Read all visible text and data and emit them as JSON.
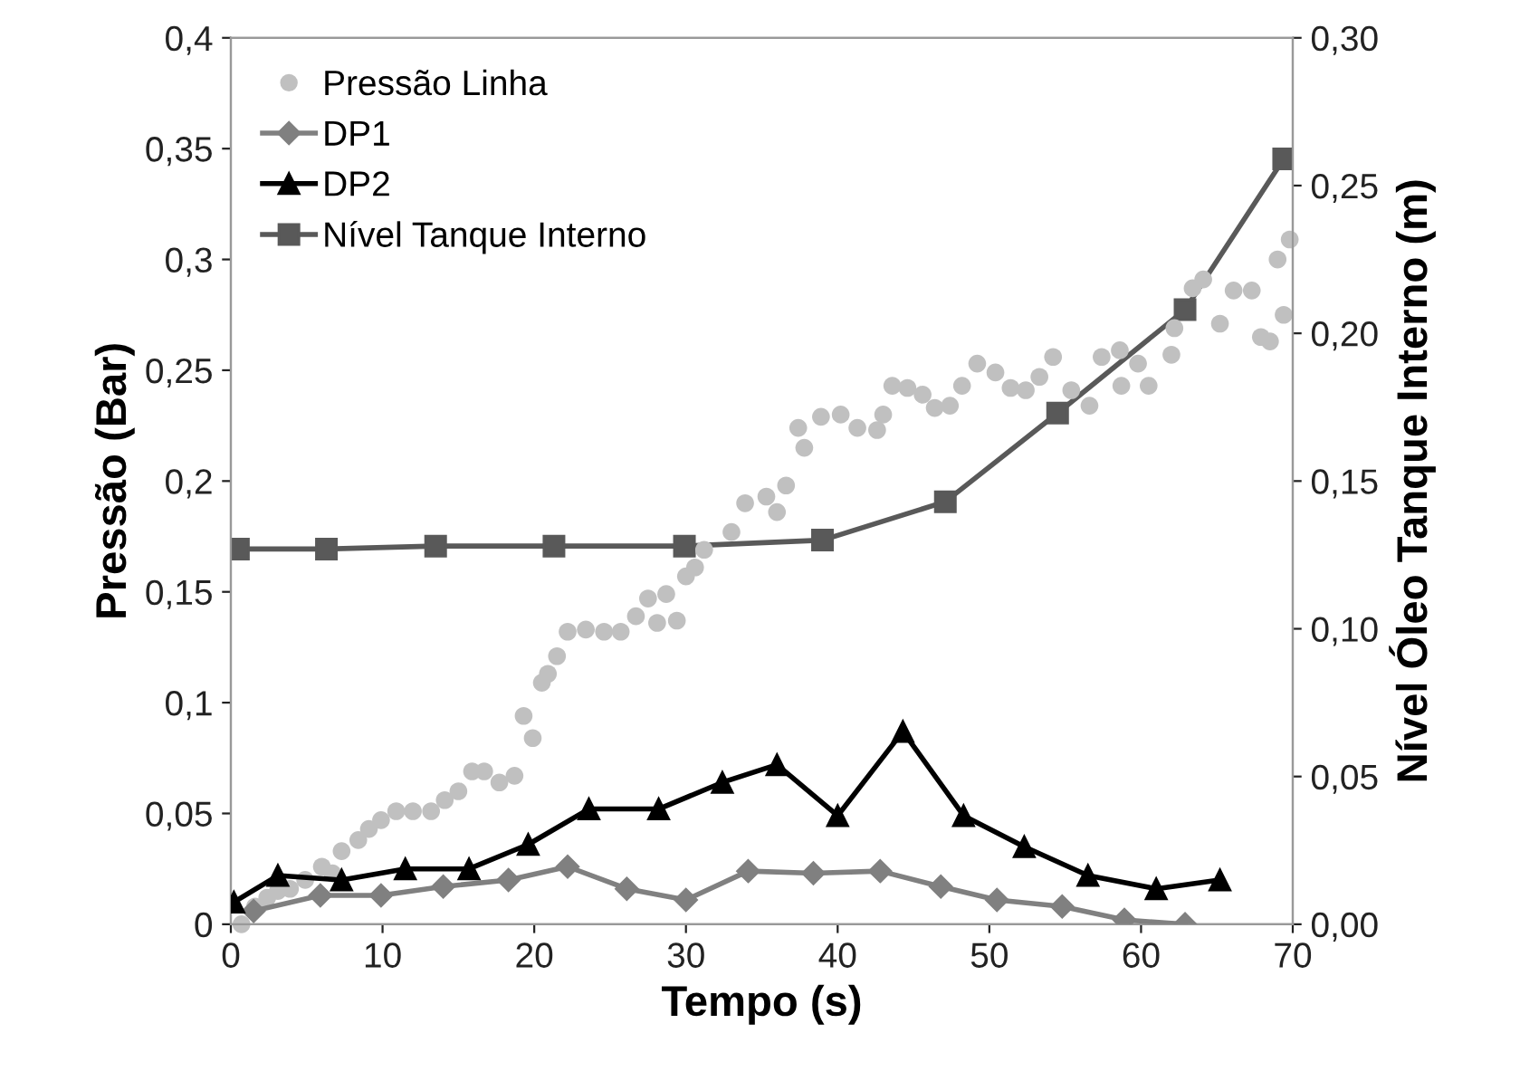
{
  "chart_data": {
    "type": "line",
    "xlabel": "Tempo (s)",
    "ylabel": "Pressão (Bar)",
    "y2label": "Nível Óleo Tanque Interno (m)",
    "xlim": [
      0,
      70
    ],
    "xticks": [
      0,
      10,
      20,
      30,
      40,
      50,
      60,
      70
    ],
    "ylim": [
      0,
      0.4
    ],
    "yticks": [
      0,
      {
        "value": 0.05,
        "label": "0,05"
      },
      {
        "value": 0.1,
        "label": "0,1"
      },
      {
        "value": 0.15,
        "label": "0,15"
      },
      {
        "value": 0.2,
        "label": "0,2"
      },
      {
        "value": 0.25,
        "label": "0,25"
      },
      {
        "value": 0.3,
        "label": "0,3"
      },
      {
        "value": 0.35,
        "label": "0,35"
      },
      {
        "value": 0.4,
        "label": "0,4"
      }
    ],
    "y2lim": [
      0,
      0.3
    ],
    "y2ticks": [
      {
        "value": 0,
        "label": "0,00"
      },
      {
        "value": 0.05,
        "label": "0,05"
      },
      {
        "value": 0.1,
        "label": "0,10"
      },
      {
        "value": 0.15,
        "label": "0,15"
      },
      {
        "value": 0.2,
        "label": "0,20"
      },
      {
        "value": 0.25,
        "label": "0,25"
      },
      {
        "value": 0.3,
        "label": "0,30"
      }
    ],
    "grid": false,
    "legend": "top left",
    "series": [
      {
        "name": "Pressão Linha",
        "type": "scatter",
        "marker": "circle",
        "color": "#c0c0c0",
        "x": [
          0.7,
          1.6,
          2.4,
          3.1,
          3.9,
          4.9,
          6,
          6.7,
          7.3,
          8.4,
          9.1,
          9.9,
          10.9,
          12,
          13.2,
          14.1,
          15,
          15.9,
          16.7,
          17.7,
          18.7,
          19.3,
          19.9,
          20.5,
          20.9,
          21.5,
          22.2,
          23.4,
          24.6,
          25.7,
          26.7,
          27.5,
          28.1,
          28.7,
          29.4,
          30,
          30.6,
          31.2,
          33,
          33.9,
          35.3,
          36,
          36.6,
          37.4,
          37.8,
          38.9,
          40.2,
          41.3,
          42.6,
          43,
          43.6,
          44.6,
          45.6,
          46.4,
          47.4,
          48.2,
          49.2,
          50.4,
          51.4,
          52.4,
          53.3,
          54.2,
          55.4,
          56.6,
          57.4,
          58.6,
          58.7,
          59.8,
          60.5,
          62,
          62.2,
          63.4,
          64.1,
          65.2,
          66.1,
          67.3,
          67.9,
          68.5,
          69,
          69.4,
          69.8
        ],
        "values": [
          0.0,
          0.008,
          0.012,
          0.015,
          0.016,
          0.02,
          0.026,
          0.023,
          0.033,
          0.038,
          0.043,
          0.047,
          0.051,
          0.051,
          0.051,
          0.056,
          0.06,
          0.069,
          0.069,
          0.064,
          0.067,
          0.094,
          0.084,
          0.109,
          0.113,
          0.121,
          0.132,
          0.133,
          0.132,
          0.132,
          0.139,
          0.147,
          0.136,
          0.149,
          0.137,
          0.157,
          0.161,
          0.169,
          0.177,
          0.19,
          0.193,
          0.186,
          0.198,
          0.224,
          0.215,
          0.229,
          0.23,
          0.224,
          0.223,
          0.23,
          0.243,
          0.242,
          0.239,
          0.233,
          0.234,
          0.243,
          0.253,
          0.249,
          0.242,
          0.241,
          0.247,
          0.256,
          0.241,
          0.234,
          0.256,
          0.259,
          0.243,
          0.253,
          0.243,
          0.257,
          0.269,
          0.287,
          0.291,
          0.271,
          0.286,
          0.286,
          0.265,
          0.263,
          0.3,
          0.275,
          0.309
        ]
      },
      {
        "name": "DP1",
        "marker": "diamond",
        "color": "#808080",
        "x": [
          1.5,
          5.9,
          9.9,
          14,
          18.3,
          22.2,
          26.1,
          30,
          34.1,
          38.4,
          42.8,
          46.8,
          50.5,
          54.8,
          58.9,
          62.9
        ],
        "values": [
          0.006,
          0.013,
          0.013,
          0.017,
          0.02,
          0.026,
          0.016,
          0.011,
          0.024,
          0.023,
          0.024,
          0.017,
          0.011,
          0.008,
          0.002,
          0
        ]
      },
      {
        "name": "DP2",
        "marker": "triangle",
        "color": "#000000",
        "x": [
          0.2,
          3.1,
          7.3,
          11.5,
          15.7,
          19.6,
          23.6,
          28.2,
          32.4,
          36,
          40,
          44.3,
          48.3,
          52.3,
          56.5,
          61,
          65.2
        ],
        "values": [
          0.01,
          0.022,
          0.02,
          0.025,
          0.025,
          0.036,
          0.052,
          0.052,
          0.064,
          0.072,
          0.049,
          0.087,
          0.049,
          0.035,
          0.022,
          0.016,
          0.02
        ]
      },
      {
        "name": "Nível Tanque Interno",
        "marker": "square",
        "color": "#595959",
        "axis": "y2",
        "x": [
          0.5,
          6.3,
          13.5,
          21.3,
          29.9,
          39,
          47.1,
          54.5,
          62.9,
          69.4
        ],
        "values": [
          0.127,
          0.127,
          0.128,
          0.128,
          0.128,
          0.13,
          0.143,
          0.173,
          0.208,
          0.259
        ]
      }
    ]
  }
}
